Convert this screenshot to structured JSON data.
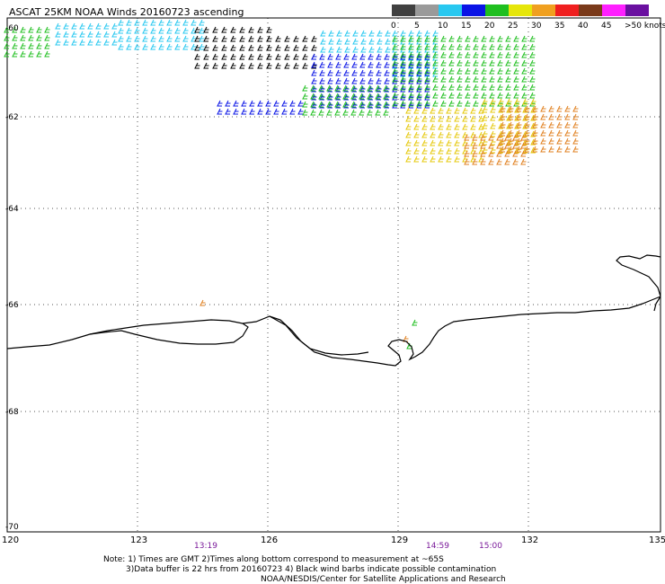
{
  "title": "ASCAT 25KM NOAA Winds 20160723 ascending",
  "legend": {
    "labels": [
      "0",
      "5",
      "10",
      "15",
      "20",
      "25",
      "30",
      "35",
      "40",
      "45",
      ">50 knots"
    ],
    "colors": [
      "#404040",
      "#9a9a9a",
      "#28c8f0",
      "#0a14e6",
      "#1fbf1f",
      "#e6e60a",
      "#f0a020",
      "#f02020",
      "#7a3a1a",
      "#ff20ff",
      "#6a10a0"
    ]
  },
  "latitude_labels": [
    "-60",
    "-62",
    "-64",
    "-66",
    "-68",
    "-70"
  ],
  "longitude_labels": [
    "120",
    "123",
    "126",
    "129",
    "132",
    "135"
  ],
  "time_labels": [
    "13:19",
    "14:59",
    "15:00"
  ],
  "notes": {
    "line1": "Note: 1) Times are GMT 2)Times along bottom correspond to measurement at ~65S",
    "line2": "3)Data buffer is 22 hrs from 20160723 4) Black wind barbs indicate possible contamination",
    "line3": "NOAA/NESDIS/Center for Satellite Applications and Research"
  },
  "colors": {
    "time_label": "#7a1a9a",
    "grid": "#555555",
    "coast": "#000000"
  }
}
